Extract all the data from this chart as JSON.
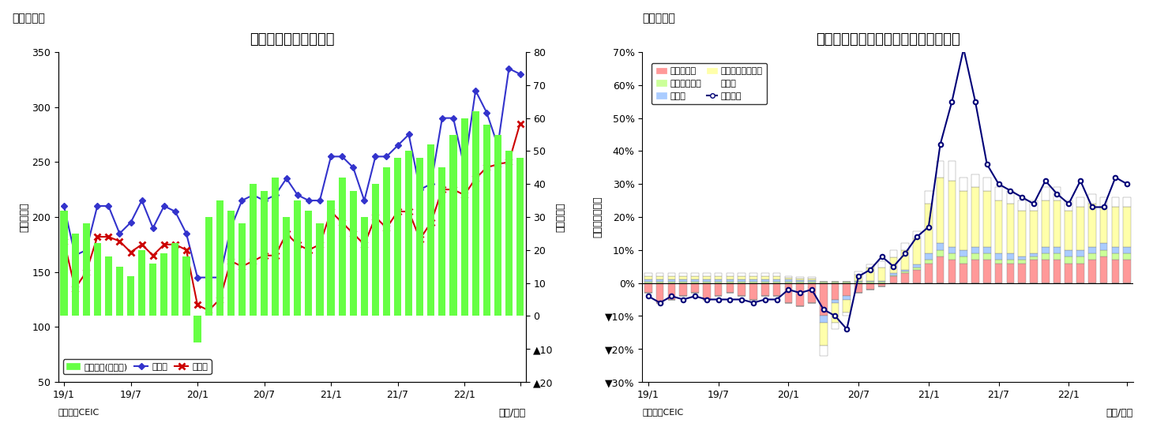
{
  "chart1": {
    "title": "マレーシア　貳易収支",
    "header": "（図表７）",
    "ylabel_left": "（億ドル）",
    "ylabel_right": "（億ドル）",
    "xlabel": "（年/月）",
    "source": "（資料）CEIC",
    "ylim_left": [
      50,
      350
    ],
    "ylim_right": [
      -20,
      80
    ],
    "yticks_left": [
      50,
      100,
      150,
      200,
      250,
      300,
      350
    ],
    "yticks_right": [
      -20,
      -10,
      0,
      10,
      20,
      30,
      40,
      50,
      60,
      70,
      80
    ],
    "trade_balance": [
      32,
      25,
      28,
      22,
      18,
      15,
      12,
      20,
      16,
      19,
      22,
      18,
      -8,
      30,
      35,
      32,
      28,
      40,
      38,
      42,
      30,
      35,
      32,
      28,
      35,
      42,
      38,
      30,
      40,
      45,
      48,
      50,
      48,
      52,
      45,
      55,
      60,
      62,
      58,
      55,
      50,
      48
    ],
    "exports": [
      210,
      165,
      170,
      210,
      210,
      185,
      195,
      215,
      190,
      210,
      205,
      185,
      145,
      145,
      145,
      190,
      215,
      220,
      215,
      220,
      235,
      220,
      215,
      215,
      255,
      255,
      245,
      215,
      255,
      255,
      265,
      275,
      225,
      230,
      290,
      290,
      245,
      315,
      295,
      265,
      335,
      330
    ],
    "imports": [
      178,
      135,
      150,
      182,
      182,
      178,
      168,
      175,
      165,
      175,
      175,
      170,
      120,
      115,
      125,
      160,
      155,
      160,
      165,
      165,
      185,
      175,
      170,
      175,
      205,
      195,
      185,
      175,
      200,
      190,
      205,
      205,
      180,
      195,
      225,
      225,
      220,
      235,
      245,
      248,
      250,
      285
    ],
    "bar_color": "#66FF44",
    "export_color": "#3333CC",
    "import_color": "#CC0000",
    "legend_trade": "貳易収支(右目盛)",
    "legend_export": "輸出額",
    "legend_import": "輸入額",
    "xtick_labels": [
      "19/1",
      "19/7",
      "20/1",
      "20/7",
      "21/1",
      "21/7",
      "22/1",
      ""
    ],
    "xtick_positions": [
      0,
      6,
      12,
      18,
      24,
      30,
      36,
      41
    ]
  },
  "chart2": {
    "title": "マレーシア　輸出の伸び率（品目別）",
    "header": "（図表８）",
    "ylabel_left": "（前年同月比）",
    "xlabel": "（年/月）",
    "source": "（資料）CEIC",
    "ylim": [
      -0.3,
      0.7
    ],
    "yticks": [
      -0.3,
      -0.2,
      -0.1,
      0.0,
      0.1,
      0.2,
      0.3,
      0.4,
      0.5,
      0.6,
      0.7
    ],
    "ytick_labels": [
      "▼30%",
      "▼20%",
      "▼10%",
      "0%",
      "10%",
      "20%",
      "30%",
      "40%",
      "50%",
      "60%",
      "70%"
    ],
    "mineral_fuel": [
      -0.03,
      -0.06,
      -0.05,
      -0.04,
      -0.03,
      -0.05,
      -0.04,
      -0.03,
      -0.04,
      -0.05,
      -0.04,
      -0.04,
      -0.06,
      -0.07,
      -0.06,
      -0.1,
      -0.05,
      -0.04,
      -0.03,
      -0.02,
      -0.01,
      0.02,
      0.03,
      0.04,
      0.06,
      0.08,
      0.07,
      0.06,
      0.07,
      0.07,
      0.06,
      0.06,
      0.06,
      0.07,
      0.07,
      0.07,
      0.06,
      0.06,
      0.07,
      0.08,
      0.07,
      0.07
    ],
    "veg_animal_oil": [
      0.005,
      0.005,
      0.005,
      0.005,
      0.005,
      0.005,
      0.005,
      0.005,
      0.005,
      0.005,
      0.005,
      0.005,
      0.005,
      0.005,
      0.005,
      0.003,
      0.003,
      0.003,
      0.003,
      0.003,
      0.003,
      0.004,
      0.005,
      0.006,
      0.01,
      0.02,
      0.02,
      0.02,
      0.02,
      0.02,
      0.01,
      0.01,
      0.01,
      0.01,
      0.02,
      0.02,
      0.02,
      0.02,
      0.02,
      0.02,
      0.02,
      0.02
    ],
    "manufactured": [
      0.005,
      0.005,
      0.005,
      0.005,
      0.005,
      0.005,
      0.005,
      0.005,
      0.005,
      0.005,
      0.005,
      0.005,
      0.005,
      0.003,
      0.003,
      -0.02,
      -0.01,
      -0.01,
      0.003,
      0.003,
      0.003,
      0.005,
      0.005,
      0.01,
      0.02,
      0.02,
      0.02,
      0.02,
      0.02,
      0.02,
      0.02,
      0.02,
      0.01,
      0.01,
      0.02,
      0.02,
      0.02,
      0.02,
      0.02,
      0.02,
      0.02,
      0.02
    ],
    "machinery": [
      0.01,
      0.01,
      0.01,
      0.01,
      0.01,
      0.01,
      0.01,
      0.01,
      0.01,
      0.01,
      0.01,
      0.01,
      0.005,
      0.005,
      0.005,
      -0.07,
      -0.06,
      -0.04,
      0.02,
      0.04,
      0.04,
      0.05,
      0.06,
      0.08,
      0.15,
      0.2,
      0.2,
      0.18,
      0.18,
      0.17,
      0.16,
      0.15,
      0.14,
      0.13,
      0.14,
      0.14,
      0.12,
      0.13,
      0.13,
      0.11,
      0.12,
      0.12
    ],
    "others": [
      0.01,
      0.01,
      0.01,
      0.01,
      0.01,
      0.01,
      0.01,
      0.01,
      0.01,
      0.01,
      0.01,
      0.01,
      0.005,
      0.005,
      0.005,
      -0.03,
      -0.02,
      -0.01,
      0.01,
      0.01,
      0.02,
      0.02,
      0.02,
      0.02,
      0.04,
      0.05,
      0.06,
      0.04,
      0.04,
      0.04,
      0.04,
      0.04,
      0.03,
      0.03,
      0.04,
      0.04,
      0.03,
      0.03,
      0.03,
      0.03,
      0.03,
      0.03
    ],
    "total_exports": [
      -0.04,
      -0.06,
      -0.04,
      -0.05,
      -0.04,
      -0.05,
      -0.05,
      -0.05,
      -0.05,
      -0.06,
      -0.05,
      -0.05,
      -0.02,
      -0.03,
      -0.02,
      -0.08,
      -0.1,
      -0.14,
      0.02,
      0.04,
      0.08,
      0.05,
      0.09,
      0.14,
      0.17,
      0.42,
      0.55,
      0.71,
      0.55,
      0.36,
      0.3,
      0.28,
      0.26,
      0.24,
      0.31,
      0.27,
      0.24,
      0.31,
      0.23,
      0.23,
      0.32,
      0.3
    ],
    "mineral_fuel_color": "#FF9999",
    "veg_oil_color": "#CCFF99",
    "manufactured_color": "#AACCFF",
    "machinery_color": "#FFFFAA",
    "others_color": "#FFFFFF",
    "total_line_color": "#000077",
    "legend_mineral": "鉱物性燃料",
    "legend_veg": "動植物性油耂",
    "legend_mfg": "製造品",
    "legend_mach": "機械・輸送用機器",
    "legend_oth": "その他",
    "legend_total": "輸出合計",
    "xtick_labels": [
      "19/1",
      "19/7",
      "20/1",
      "20/7",
      "21/1",
      "21/7",
      "22/1",
      ""
    ],
    "xtick_positions": [
      0,
      6,
      12,
      18,
      24,
      30,
      36,
      41
    ]
  }
}
